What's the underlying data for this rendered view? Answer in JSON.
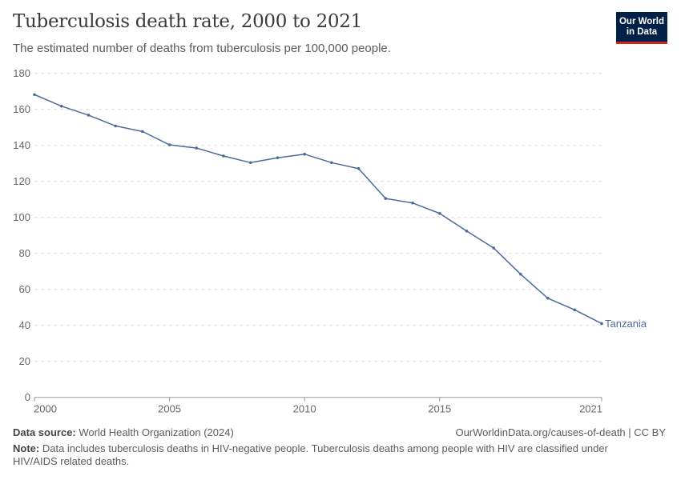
{
  "header": {
    "title": "Tuberculosis death rate, 2000 to 2021",
    "subtitle": "The estimated number of deaths from tuberculosis per 100,000 people.",
    "logo_line1": "Our World",
    "logo_line2": "in Data"
  },
  "footer": {
    "source_label": "Data source:",
    "source_text": "World Health Organization (2024)",
    "url": "OurWorldinData.org/causes-of-death | CC BY",
    "note_label": "Note:",
    "note_text": "Data includes tuberculosis deaths in HIV-negative people. Tuberculosis deaths among people with HIV are classified under HIV/AIDS related deaths."
  },
  "chart_data": {
    "type": "line",
    "title": "Tuberculosis death rate, 2000 to 2021",
    "xlim": [
      2000,
      2021
    ],
    "ylim": [
      0,
      180
    ],
    "x_ticks": [
      2000,
      2005,
      2010,
      2015,
      2021
    ],
    "y_ticks": [
      0,
      20,
      40,
      60,
      80,
      100,
      120,
      140,
      160,
      180
    ],
    "grid": "horizontal dashed",
    "legend": "inline label at line end",
    "series": [
      {
        "name": "Tanzania",
        "color": "#4c6a9c",
        "x": [
          2000,
          2001,
          2002,
          2003,
          2004,
          2005,
          2006,
          2007,
          2008,
          2009,
          2010,
          2011,
          2012,
          2013,
          2014,
          2015,
          2016,
          2017,
          2018,
          2019,
          2020,
          2021
        ],
        "values": [
          168.2,
          161.8,
          156.8,
          150.8,
          147.7,
          140.3,
          138.5,
          134.1,
          130.4,
          133.1,
          135.1,
          130.4,
          127.1,
          110.5,
          108.0,
          102.2,
          92.4,
          83.0,
          68.4,
          55.1,
          48.6,
          41.0
        ]
      }
    ]
  }
}
